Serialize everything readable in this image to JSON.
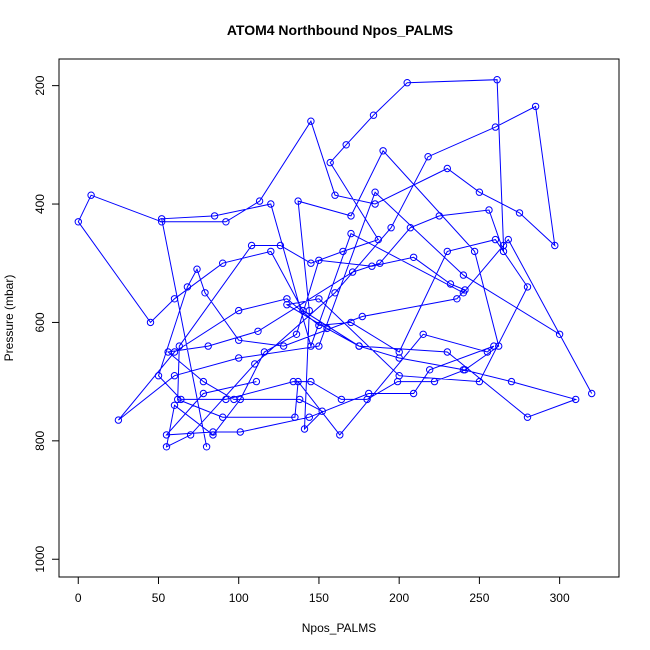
{
  "chart_data": {
    "type": "line",
    "title": "ATOM4 Northbound Npos_PALMS",
    "xlabel": "Npos_PALMS",
    "ylabel": "Pressure (mbar)",
    "xlim": [
      -12,
      337
    ],
    "ylim": [
      1030,
      155
    ],
    "y_reversed": true,
    "x_ticks": [
      0,
      50,
      100,
      150,
      200,
      250,
      300
    ],
    "y_ticks": [
      200,
      400,
      600,
      800,
      1000
    ],
    "grid": false,
    "legend": "none",
    "series": [
      {
        "line_color": "#0000ff",
        "marker": "open-circle",
        "x": [
          80,
          52,
          85,
          120,
          145,
          170,
          240,
          268,
          320,
          300,
          240,
          185,
          150,
          100,
          60,
          25,
          60,
          100,
          130,
          150,
          170,
          200,
          230,
          260,
          280,
          250,
          200,
          150,
          130,
          155,
          175,
          200,
          240,
          270,
          310,
          280,
          230,
          175,
          140,
          120,
          90,
          60,
          45,
          0,
          8,
          52,
          92,
          113,
          145,
          160,
          185,
          230,
          250,
          275,
          297,
          285,
          260,
          218,
          195,
          160,
          110,
          70,
          55,
          60,
          84,
          101,
          116,
          136,
          150,
          183,
          209,
          232,
          241,
          236,
          177,
          128,
          100,
          79,
          74,
          68,
          50,
          64,
          92,
          134,
          145,
          164,
          180,
          199,
          222,
          241,
          262,
          247,
          190,
          170,
          137,
          144,
          141,
          152,
          138,
          97,
          78,
          56,
          81,
          112,
          171,
          188,
          207,
          225,
          256,
          265,
          265,
          261,
          205,
          184,
          167,
          157,
          187,
          165,
          145,
          126,
          108,
          63,
          62,
          90,
          135,
          137,
          163,
          215,
          255,
          259,
          219,
          209,
          181,
          144,
          101,
          84,
          55,
          78,
          111
        ],
        "y": [
          810,
          425,
          420,
          400,
          640,
          450,
          550,
          460,
          720,
          620,
          520,
          380,
          640,
          660,
          690,
          765,
          650,
          580,
          560,
          605,
          600,
          650,
          480,
          460,
          540,
          700,
          690,
          560,
          570,
          610,
          640,
          660,
          680,
          700,
          730,
          760,
          650,
          640,
          580,
          480,
          500,
          560,
          600,
          430,
          385,
          430,
          430,
          395,
          260,
          385,
          400,
          340,
          380,
          415,
          470,
          235,
          270,
          320,
          440,
          550,
          670,
          790,
          810,
          740,
          790,
          730,
          650,
          620,
          495,
          505,
          490,
          535,
          545,
          560,
          590,
          640,
          630,
          550,
          510,
          540,
          690,
          730,
          730,
          700,
          700,
          730,
          730,
          700,
          700,
          680,
          640,
          480,
          310,
          420,
          395,
          580,
          780,
          750,
          730,
          730,
          700,
          650,
          640,
          615,
          515,
          500,
          440,
          420,
          410,
          480,
          470,
          190,
          195,
          250,
          300,
          330,
          460,
          480,
          500,
          470,
          470,
          640,
          730,
          760,
          760,
          700,
          790,
          620,
          650,
          640,
          680,
          720,
          720,
          760,
          785,
          785,
          790,
          720,
          700
        ]
      }
    ]
  }
}
